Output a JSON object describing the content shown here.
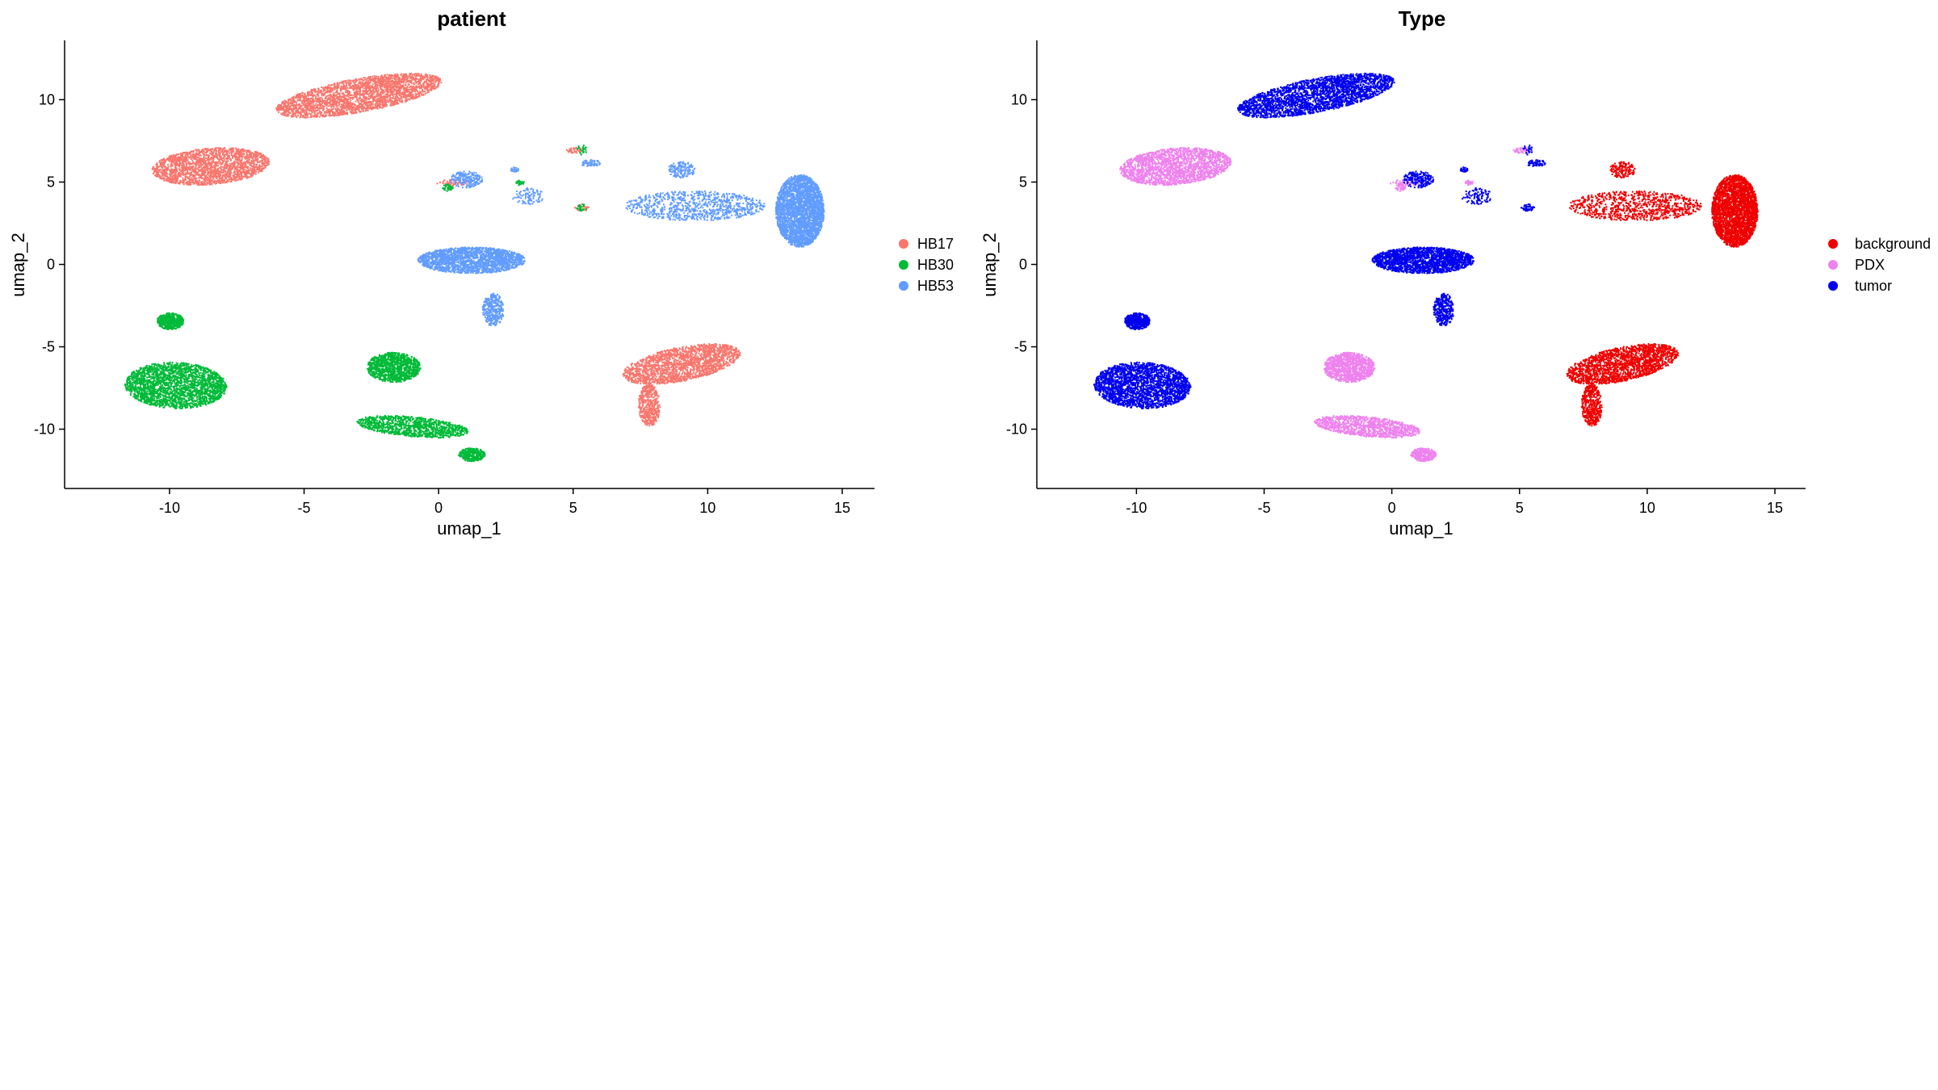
{
  "chart_data": [
    {
      "type": "scatter",
      "title": "patient",
      "xlabel": "umap_1",
      "ylabel": "umap_2",
      "xlim": [
        -13.9,
        16.2
      ],
      "ylim": [
        -13.6,
        13.6
      ],
      "xticks": [
        -10,
        -5,
        0,
        5,
        10,
        15
      ],
      "yticks": [
        -10,
        -5,
        0,
        5,
        10
      ],
      "grid": false,
      "legend_position": "right",
      "legend": [
        {
          "label": "HB17",
          "color": "#F8766D"
        },
        {
          "label": "HB30",
          "color": "#00BA38"
        },
        {
          "label": "HB53",
          "color": "#619CFF"
        }
      ],
      "clusters": [
        {
          "group": "HB17",
          "center": [
            -3.0,
            10.3
          ],
          "n": 2600,
          "dx": 3.2,
          "dy": 1.0,
          "tilt": 0.3
        },
        {
          "group": "HB17",
          "center": [
            -8.5,
            6.0
          ],
          "n": 2000,
          "dx": 2.2,
          "dy": 1.1,
          "tilt": 0.15
        },
        {
          "group": "HB17",
          "center": [
            9.0,
            -6.0
          ],
          "n": 1900,
          "dx": 2.3,
          "dy": 1.0,
          "tilt": 0.35
        },
        {
          "group": "HB17",
          "center": [
            7.8,
            -8.5
          ],
          "n": 450,
          "dx": 0.4,
          "dy": 1.3,
          "tilt": 0.0
        },
        {
          "group": "HB17",
          "center": [
            0.5,
            5.0
          ],
          "n": 50,
          "dx": 0.6,
          "dy": 0.2,
          "tilt": 0.0
        },
        {
          "group": "HB17",
          "center": [
            5.0,
            7.0
          ],
          "n": 40,
          "dx": 0.3,
          "dy": 0.2,
          "tilt": 0.0
        },
        {
          "group": "HB17",
          "center": [
            5.3,
            3.5
          ],
          "n": 30,
          "dx": 0.3,
          "dy": 0.2,
          "tilt": 0.0
        },
        {
          "group": "HB30",
          "center": [
            -9.8,
            -7.3
          ],
          "n": 2400,
          "dx": 1.9,
          "dy": 1.4,
          "tilt": -0.1
        },
        {
          "group": "HB30",
          "center": [
            -10.0,
            -3.4
          ],
          "n": 450,
          "dx": 0.5,
          "dy": 0.5,
          "tilt": 0.0
        },
        {
          "group": "HB30",
          "center": [
            -1.7,
            -6.2
          ],
          "n": 1100,
          "dx": 1.0,
          "dy": 0.9,
          "tilt": 0.0
        },
        {
          "group": "HB30",
          "center": [
            -1.0,
            -9.8
          ],
          "n": 1100,
          "dx": 2.1,
          "dy": 0.6,
          "tilt": -0.15
        },
        {
          "group": "HB30",
          "center": [
            1.2,
            -11.5
          ],
          "n": 300,
          "dx": 0.5,
          "dy": 0.4,
          "tilt": 0.0
        },
        {
          "group": "HB30",
          "center": [
            0.3,
            4.7
          ],
          "n": 40,
          "dx": 0.2,
          "dy": 0.2,
          "tilt": 0.0
        },
        {
          "group": "HB30",
          "center": [
            3.0,
            5.0
          ],
          "n": 25,
          "dx": 0.15,
          "dy": 0.15,
          "tilt": 0.0
        },
        {
          "group": "HB30",
          "center": [
            5.3,
            7.0
          ],
          "n": 25,
          "dx": 0.2,
          "dy": 0.3,
          "tilt": 0.0
        },
        {
          "group": "HB30",
          "center": [
            5.3,
            3.5
          ],
          "n": 25,
          "dx": 0.2,
          "dy": 0.2,
          "tilt": 0.0
        },
        {
          "group": "HB53",
          "center": [
            13.4,
            3.3
          ],
          "n": 3000,
          "dx": 0.9,
          "dy": 2.2,
          "tilt": 0.0
        },
        {
          "group": "HB53",
          "center": [
            9.5,
            3.6
          ],
          "n": 900,
          "dx": 2.6,
          "dy": 0.9,
          "tilt": 0.0
        },
        {
          "group": "HB53",
          "center": [
            9.0,
            5.8
          ],
          "n": 150,
          "dx": 0.5,
          "dy": 0.5,
          "tilt": 0.0
        },
        {
          "group": "HB53",
          "center": [
            1.2,
            0.3
          ],
          "n": 2000,
          "dx": 2.0,
          "dy": 0.8,
          "tilt": 0.0
        },
        {
          "group": "HB53",
          "center": [
            2.0,
            -2.7
          ],
          "n": 350,
          "dx": 0.4,
          "dy": 1.0,
          "tilt": 0.0
        },
        {
          "group": "HB53",
          "center": [
            1.0,
            5.2
          ],
          "n": 200,
          "dx": 0.6,
          "dy": 0.5,
          "tilt": 0.0
        },
        {
          "group": "HB53",
          "center": [
            3.3,
            4.2
          ],
          "n": 100,
          "dx": 0.6,
          "dy": 0.5,
          "tilt": 0.0
        },
        {
          "group": "HB53",
          "center": [
            5.6,
            6.2
          ],
          "n": 60,
          "dx": 0.4,
          "dy": 0.2,
          "tilt": 0.0
        },
        {
          "group": "HB53",
          "center": [
            2.8,
            5.8
          ],
          "n": 30,
          "dx": 0.15,
          "dy": 0.15,
          "tilt": 0.0
        }
      ]
    },
    {
      "type": "scatter",
      "title": "Type",
      "xlabel": "umap_1",
      "ylabel": "umap_2",
      "xlim": [
        -13.9,
        16.2
      ],
      "ylim": [
        -13.6,
        13.6
      ],
      "xticks": [
        -10,
        -5,
        0,
        5,
        10,
        15
      ],
      "yticks": [
        -10,
        -5,
        0,
        5,
        10
      ],
      "grid": false,
      "legend_position": "right",
      "legend": [
        {
          "label": "background",
          "color": "#EE0000"
        },
        {
          "label": "PDX",
          "color": "#EE82EE"
        },
        {
          "label": "tumor",
          "color": "#0000EE"
        }
      ],
      "clusters": [
        {
          "group": "tumor",
          "center": [
            -3.0,
            10.3
          ],
          "n": 2600,
          "dx": 3.2,
          "dy": 1.0,
          "tilt": 0.3
        },
        {
          "group": "PDX",
          "center": [
            -8.5,
            6.0
          ],
          "n": 2000,
          "dx": 2.2,
          "dy": 1.1,
          "tilt": 0.15
        },
        {
          "group": "background",
          "center": [
            9.0,
            -6.0
          ],
          "n": 1900,
          "dx": 2.3,
          "dy": 1.0,
          "tilt": 0.35
        },
        {
          "group": "background",
          "center": [
            7.8,
            -8.5
          ],
          "n": 450,
          "dx": 0.4,
          "dy": 1.3,
          "tilt": 0.0
        },
        {
          "group": "PDX",
          "center": [
            0.5,
            5.0
          ],
          "n": 50,
          "dx": 0.6,
          "dy": 0.2,
          "tilt": 0.0
        },
        {
          "group": "PDX",
          "center": [
            5.0,
            7.0
          ],
          "n": 40,
          "dx": 0.3,
          "dy": 0.2,
          "tilt": 0.0
        },
        {
          "group": "tumor",
          "center": [
            5.3,
            3.5
          ],
          "n": 30,
          "dx": 0.3,
          "dy": 0.2,
          "tilt": 0.0
        },
        {
          "group": "tumor",
          "center": [
            -9.8,
            -7.3
          ],
          "n": 2400,
          "dx": 1.9,
          "dy": 1.4,
          "tilt": -0.1
        },
        {
          "group": "tumor",
          "center": [
            -10.0,
            -3.4
          ],
          "n": 450,
          "dx": 0.5,
          "dy": 0.5,
          "tilt": 0.0
        },
        {
          "group": "PDX",
          "center": [
            -1.7,
            -6.2
          ],
          "n": 1100,
          "dx": 1.0,
          "dy": 0.9,
          "tilt": 0.0
        },
        {
          "group": "PDX",
          "center": [
            -1.0,
            -9.8
          ],
          "n": 1100,
          "dx": 2.1,
          "dy": 0.6,
          "tilt": -0.15
        },
        {
          "group": "PDX",
          "center": [
            1.2,
            -11.5
          ],
          "n": 300,
          "dx": 0.5,
          "dy": 0.4,
          "tilt": 0.0
        },
        {
          "group": "PDX",
          "center": [
            0.3,
            4.7
          ],
          "n": 40,
          "dx": 0.2,
          "dy": 0.2,
          "tilt": 0.0
        },
        {
          "group": "PDX",
          "center": [
            3.0,
            5.0
          ],
          "n": 25,
          "dx": 0.15,
          "dy": 0.15,
          "tilt": 0.0
        },
        {
          "group": "tumor",
          "center": [
            5.3,
            7.0
          ],
          "n": 25,
          "dx": 0.2,
          "dy": 0.3,
          "tilt": 0.0
        },
        {
          "group": "tumor",
          "center": [
            5.3,
            3.5
          ],
          "n": 25,
          "dx": 0.2,
          "dy": 0.2,
          "tilt": 0.0
        },
        {
          "group": "background",
          "center": [
            13.4,
            3.3
          ],
          "n": 3000,
          "dx": 0.9,
          "dy": 2.2,
          "tilt": 0.0
        },
        {
          "group": "background",
          "center": [
            9.5,
            3.6
          ],
          "n": 900,
          "dx": 2.6,
          "dy": 0.9,
          "tilt": 0.0
        },
        {
          "group": "background",
          "center": [
            9.0,
            5.8
          ],
          "n": 150,
          "dx": 0.5,
          "dy": 0.5,
          "tilt": 0.0
        },
        {
          "group": "tumor",
          "center": [
            1.2,
            0.3
          ],
          "n": 2000,
          "dx": 2.0,
          "dy": 0.8,
          "tilt": 0.0
        },
        {
          "group": "tumor",
          "center": [
            2.0,
            -2.7
          ],
          "n": 350,
          "dx": 0.4,
          "dy": 1.0,
          "tilt": 0.0
        },
        {
          "group": "tumor",
          "center": [
            1.0,
            5.2
          ],
          "n": 200,
          "dx": 0.6,
          "dy": 0.5,
          "tilt": 0.0
        },
        {
          "group": "tumor",
          "center": [
            3.3,
            4.2
          ],
          "n": 100,
          "dx": 0.6,
          "dy": 0.5,
          "tilt": 0.0
        },
        {
          "group": "tumor",
          "center": [
            5.6,
            6.2
          ],
          "n": 60,
          "dx": 0.4,
          "dy": 0.2,
          "tilt": 0.0
        },
        {
          "group": "tumor",
          "center": [
            2.8,
            5.8
          ],
          "n": 30,
          "dx": 0.15,
          "dy": 0.15,
          "tilt": 0.0
        }
      ]
    }
  ]
}
